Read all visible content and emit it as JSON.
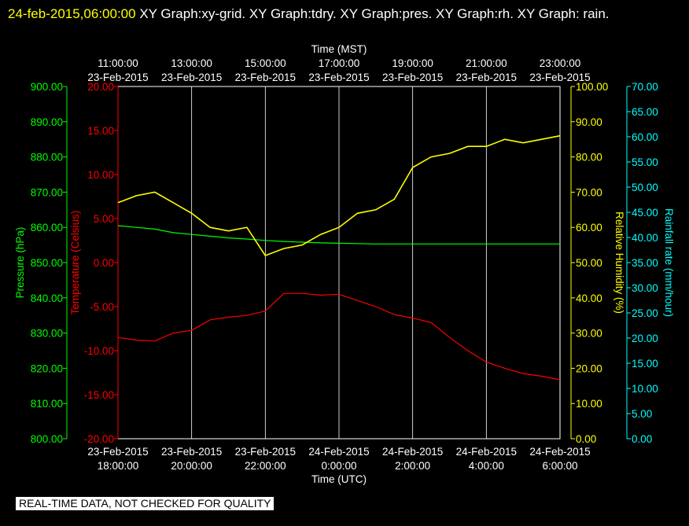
{
  "header": {
    "stamp": "24-feb-2015,06:00:00",
    "graphs": "XY Graph:xy-grid.  XY Graph:tdry.  XY Graph:pres.  XY Graph:rh.  XY Graph: rain."
  },
  "footer": {
    "qc_notice": "REAL-TIME DATA, NOT CHECKED FOR QUALITY"
  },
  "chart_data": {
    "type": "line",
    "x_bottom": {
      "label": "Time (UTC)",
      "ticks": [
        {
          "date": "23-Feb-2015",
          "time": "18:00:00"
        },
        {
          "date": "23-Feb-2015",
          "time": "20:00:00"
        },
        {
          "date": "23-Feb-2015",
          "time": "22:00:00"
        },
        {
          "date": "24-Feb-2015",
          "time": "0:00:00"
        },
        {
          "date": "24-Feb-2015",
          "time": "2:00:00"
        },
        {
          "date": "24-Feb-2015",
          "time": "4:00:00"
        },
        {
          "date": "24-Feb-2015",
          "time": "6:00:00"
        }
      ],
      "range": [
        "2015-02-23T18:00:00Z",
        "2015-02-24T06:00:00Z"
      ]
    },
    "x_top": {
      "label": "Time (MST)",
      "ticks": [
        {
          "time": "11:00:00",
          "date": "23-Feb-2015"
        },
        {
          "time": "13:00:00",
          "date": "23-Feb-2015"
        },
        {
          "time": "15:00:00",
          "date": "23-Feb-2015"
        },
        {
          "time": "17:00:00",
          "date": "23-Feb-2015"
        },
        {
          "time": "19:00:00",
          "date": "23-Feb-2015"
        },
        {
          "time": "21:00:00",
          "date": "23-Feb-2015"
        },
        {
          "time": "23:00:00",
          "date": "23-Feb-2015"
        }
      ]
    },
    "grid": "vertical",
    "axes": {
      "pressure": {
        "label": "Pressure (hPa)",
        "color": "#00ff00",
        "range": [
          800,
          900
        ],
        "ticks": [
          "800.00",
          "810.00",
          "820.00",
          "830.00",
          "840.00",
          "850.00",
          "860.00",
          "870.00",
          "880.00",
          "890.00",
          "900.00"
        ]
      },
      "temperature": {
        "label": "Temperature (Celsius)",
        "color": "#ff0000",
        "range": [
          -20,
          20
        ],
        "ticks": [
          "-20.00",
          "-15.00",
          "-10.00",
          "-5.00",
          "0.00",
          "5.00",
          "10.00",
          "15.00",
          "20.00"
        ]
      },
      "humidity": {
        "label": "Relative Humidity (%)",
        "color": "#ffff00",
        "range": [
          0,
          100
        ],
        "ticks": [
          "0.00",
          "10.00",
          "20.00",
          "30.00",
          "40.00",
          "50.00",
          "60.00",
          "70.00",
          "80.00",
          "90.00",
          "100.00"
        ]
      },
      "rain": {
        "label": "Rainfall rate (mm/hour)",
        "color": "#00ffff",
        "range": [
          0,
          70
        ],
        "ticks": [
          "0.00",
          "5.00",
          "10.00",
          "15.00",
          "20.00",
          "25.00",
          "30.00",
          "35.00",
          "40.00",
          "45.00",
          "50.00",
          "55.00",
          "60.00",
          "65.00",
          "70.00"
        ]
      }
    },
    "x_hours": [
      0,
      0.5,
      1,
      1.5,
      2,
      2.5,
      3,
      3.5,
      4,
      4.5,
      5,
      5.5,
      6,
      6.5,
      7,
      7.5,
      8,
      8.5,
      9,
      9.5,
      10,
      10.5,
      11,
      11.5,
      12
    ],
    "series": [
      {
        "name": "Temperature",
        "axis": "temperature",
        "color": "#ff0000",
        "values": [
          -8.5,
          -8.8,
          -8.9,
          -8.0,
          -7.7,
          -6.5,
          -6.2,
          -6.0,
          -5.5,
          -3.5,
          -3.5,
          -3.7,
          -3.6,
          -4.3,
          -5.0,
          -5.9,
          -6.3,
          -6.8,
          -8.5,
          -10.0,
          -11.3,
          -12.0,
          -12.6,
          -12.9,
          -13.3
        ]
      },
      {
        "name": "Pressure",
        "axis": "pressure",
        "color": "#00ff00",
        "values": [
          860.5,
          860.0,
          859.5,
          858.5,
          858.0,
          857.5,
          857.0,
          856.7,
          856.3,
          856.0,
          855.8,
          855.6,
          855.5,
          855.4,
          855.3,
          855.3,
          855.3,
          855.3,
          855.3,
          855.3,
          855.3,
          855.3,
          855.3,
          855.3,
          855.3
        ]
      },
      {
        "name": "Relative Humidity",
        "axis": "humidity",
        "color": "#ffff00",
        "values": [
          67,
          69,
          70,
          67,
          64,
          60,
          59,
          60,
          52,
          54,
          55,
          58,
          60,
          64,
          65,
          68,
          77,
          80,
          81,
          83,
          83,
          85,
          84,
          85,
          86
        ]
      }
    ]
  }
}
